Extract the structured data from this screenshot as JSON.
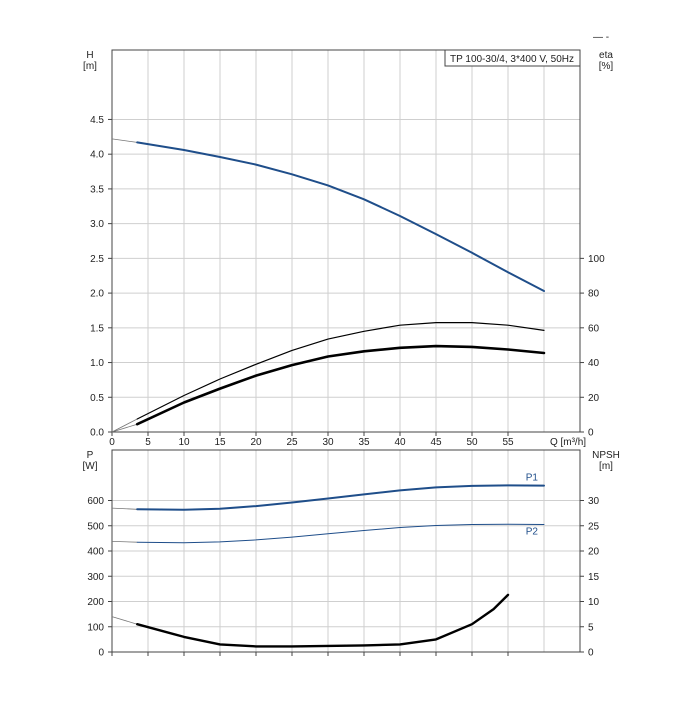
{
  "top_right_marks": "—  -",
  "chart_data": [
    {
      "type": "line",
      "title": "TP 100-30/4, 3*400 V, 50Hz",
      "xlabel": "Q [m³/h]",
      "ylabel_left": "H",
      "ylabel_left_unit": "[m]",
      "ylabel_right": "eta",
      "ylabel_right_unit": "[%]",
      "xlim": [
        0,
        65
      ],
      "ylim_left": [
        0,
        5.5
      ],
      "ylim_right": [
        0,
        220
      ],
      "x_ticks": [
        "0",
        "5",
        "10",
        "15",
        "20",
        "25",
        "30",
        "35",
        "40",
        "45",
        "50",
        "55"
      ],
      "y_left_ticks": [
        "0.0",
        "0.5",
        "1.0",
        "1.5",
        "2.0",
        "2.5",
        "3.0",
        "3.5",
        "4.0",
        "4.5"
      ],
      "y_right_ticks": [
        "0",
        "20",
        "40",
        "60",
        "80",
        "100"
      ],
      "grid": true,
      "series": [
        {
          "axis": "left",
          "color": "#1f4e8a",
          "width": 2,
          "extension": [
            [
              0,
              4.22
            ],
            [
              3.5,
              4.17
            ]
          ],
          "points": [
            [
              3.5,
              4.17
            ],
            [
              10,
              4.06
            ],
            [
              15,
              3.96
            ],
            [
              20,
              3.85
            ],
            [
              25,
              3.71
            ],
            [
              30,
              3.55
            ],
            [
              35,
              3.35
            ],
            [
              40,
              3.11
            ],
            [
              45,
              2.85
            ],
            [
              50,
              2.58
            ],
            [
              55,
              2.3
            ],
            [
              60,
              2.03
            ]
          ]
        },
        {
          "axis": "right",
          "color": "#000000",
          "width": 1.2,
          "extension": [
            [
              0,
              0
            ],
            [
              3.5,
              7.5
            ]
          ],
          "points": [
            [
              3.5,
              7.5
            ],
            [
              10,
              21
            ],
            [
              15,
              30.5
            ],
            [
              20,
              39
            ],
            [
              25,
              47
            ],
            [
              30,
              53.5
            ],
            [
              35,
              58
            ],
            [
              40,
              61.5
            ],
            [
              45,
              63
            ],
            [
              50,
              63
            ],
            [
              55,
              61.5
            ],
            [
              60,
              58.5
            ]
          ]
        },
        {
          "axis": "right",
          "color": "#000000",
          "width": 2.6,
          "extension": [
            [
              0,
              0
            ],
            [
              3.5,
              4.5
            ]
          ],
          "points": [
            [
              3.5,
              4.5
            ],
            [
              10,
              17
            ],
            [
              15,
              25
            ],
            [
              20,
              32.5
            ],
            [
              25,
              38.5
            ],
            [
              30,
              43.5
            ],
            [
              35,
              46.5
            ],
            [
              40,
              48.5
            ],
            [
              45,
              49.5
            ],
            [
              50,
              49
            ],
            [
              55,
              47.5
            ],
            [
              60,
              45.5
            ]
          ]
        }
      ]
    },
    {
      "type": "line",
      "xlim": [
        0,
        65
      ],
      "ylabel_left": "P",
      "ylabel_left_unit": "[W]",
      "ylabel_right": "NPSH",
      "ylabel_right_unit": "[m]",
      "ylim_left": [
        0,
        800
      ],
      "ylim_right": [
        0,
        40
      ],
      "y_left_ticks": [
        "0",
        "100",
        "200",
        "300",
        "400",
        "500",
        "600"
      ],
      "y_right_ticks": [
        "0",
        "5",
        "10",
        "15",
        "20",
        "25",
        "30"
      ],
      "grid": true,
      "series": [
        {
          "name": "P1",
          "axis": "left",
          "color": "#1f4e8a",
          "width": 2,
          "extension": [
            [
              0,
              570
            ],
            [
              3.5,
              565
            ]
          ],
          "points": [
            [
              3.5,
              565
            ],
            [
              10,
              563
            ],
            [
              15,
              567
            ],
            [
              20,
              578
            ],
            [
              25,
              592
            ],
            [
              30,
              608
            ],
            [
              35,
              624
            ],
            [
              40,
              640
            ],
            [
              45,
              652
            ],
            [
              50,
              658
            ],
            [
              55,
              660
            ],
            [
              60,
              659
            ]
          ]
        },
        {
          "name": "P2",
          "axis": "left",
          "color": "#1f4e8a",
          "width": 1,
          "extension": [
            [
              0,
              438
            ],
            [
              3.5,
              435
            ]
          ],
          "points": [
            [
              3.5,
              435
            ],
            [
              10,
              433
            ],
            [
              15,
              436
            ],
            [
              20,
              444
            ],
            [
              25,
              455
            ],
            [
              30,
              468
            ],
            [
              35,
              481
            ],
            [
              40,
              493
            ],
            [
              45,
              501
            ],
            [
              50,
              505
            ],
            [
              55,
              506
            ],
            [
              60,
              505
            ]
          ]
        },
        {
          "axis": "right",
          "color": "#000000",
          "width": 2.4,
          "extension": [
            [
              0,
              7
            ],
            [
              3.5,
              5.5
            ]
          ],
          "points": [
            [
              3.5,
              5.5
            ],
            [
              10,
              3
            ],
            [
              15,
              1.5
            ],
            [
              20,
              1.1
            ],
            [
              25,
              1.1
            ],
            [
              30,
              1.2
            ],
            [
              35,
              1.3
            ],
            [
              40,
              1.5
            ],
            [
              45,
              2.5
            ],
            [
              50,
              5.5
            ],
            [
              53,
              8.5
            ],
            [
              55,
              11.3
            ]
          ]
        }
      ]
    }
  ]
}
